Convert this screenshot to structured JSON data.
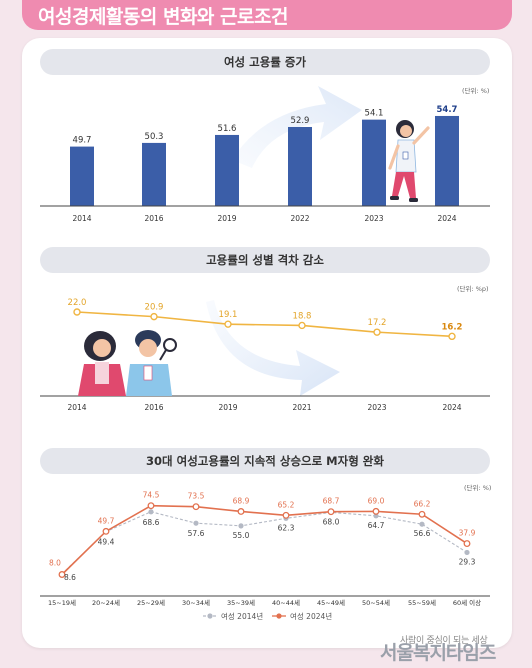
{
  "header": {
    "title": "여성경제활동의 변화와 근로조건"
  },
  "charts": [
    {
      "title": "여성 고용률 증가",
      "unit": "(단위: %)",
      "type": "bar",
      "categories": [
        "2014",
        "2016",
        "2019",
        "2022",
        "2023",
        "2024"
      ],
      "values": [
        49.7,
        50.3,
        51.6,
        52.9,
        54.1,
        54.7
      ],
      "value_labels": [
        "49.7",
        "50.3",
        "51.6",
        "52.9",
        "54.1",
        "54.7"
      ],
      "bar_color": "#3b5ea8",
      "ylim": [
        40,
        56
      ]
    },
    {
      "title": "고용률의 성별 격차 감소",
      "unit": "(단위: %p)",
      "type": "line",
      "categories": [
        "2014",
        "2016",
        "2019",
        "2021",
        "2023",
        "2024"
      ],
      "values": [
        22.0,
        20.9,
        19.1,
        18.8,
        17.2,
        16.2
      ],
      "value_labels": [
        "22.0",
        "20.9",
        "19.1",
        "18.8",
        "17.2",
        "16.2"
      ],
      "line_color": "#f0b542",
      "ylim": [
        10,
        26
      ]
    },
    {
      "title": "30대 여성고용률의 지속적 상승으로 M자형 완화",
      "unit": "(단위: %)",
      "type": "line",
      "categories": [
        "15~19세",
        "20~24세",
        "25~29세",
        "30~34세",
        "35~39세",
        "40~44세",
        "45~49세",
        "50~54세",
        "55~59세",
        "60세 이상"
      ],
      "series": [
        {
          "name": "여성 2014년",
          "color": "#b4b9c4",
          "values": [
            8.6,
            49.4,
            68.6,
            57.6,
            55.0,
            62.3,
            68.0,
            64.7,
            56.6,
            29.3
          ],
          "value_labels": [
            "8.6",
            "49.4",
            "68.6",
            "57.6",
            "55.0",
            "62.3",
            "68.0",
            "64.7",
            "56.6",
            "29.3"
          ]
        },
        {
          "name": "여성 2024년",
          "color": "#e2714f",
          "values": [
            8.0,
            49.7,
            74.5,
            73.5,
            68.9,
            65.2,
            68.7,
            69.0,
            66.2,
            37.9
          ],
          "value_labels": [
            "8.0",
            "49.7",
            "74.5",
            "73.5",
            "68.9",
            "65.2",
            "68.7",
            "69.0",
            "66.2",
            "37.9"
          ]
        }
      ],
      "ylim": [
        0,
        80
      ]
    }
  ],
  "watermark": {
    "sub": "사람이 중심이 되는 세상",
    "main": "서울복지타임즈"
  }
}
